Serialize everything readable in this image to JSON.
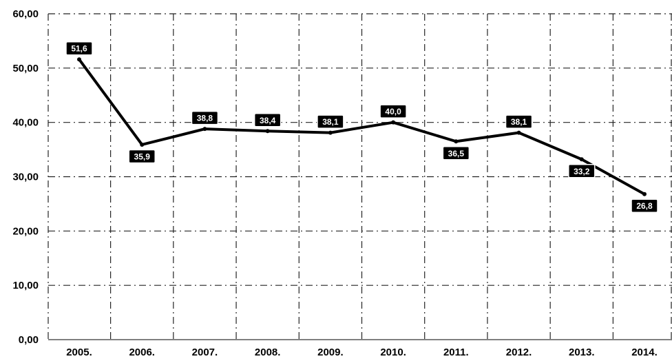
{
  "chart_data": {
    "type": "line",
    "categories": [
      "2005.",
      "2006.",
      "2007.",
      "2008.",
      "2009.",
      "2010.",
      "2011.",
      "2012.",
      "2013.",
      "2014."
    ],
    "series": [
      {
        "values": [
          51.6,
          35.9,
          38.8,
          38.4,
          38.1,
          40.0,
          36.5,
          38.1,
          33.2,
          26.8
        ]
      }
    ],
    "data_labels": [
      "51,6",
      "35,9",
      "38,8",
      "38,4",
      "38,1",
      "40,0",
      "36,5",
      "38,1",
      "33,2",
      "26,8"
    ],
    "y_tick_labels": [
      "0,00",
      "10,00",
      "20,00",
      "30,00",
      "40,00",
      "50,00",
      "60,00"
    ],
    "y_ticks": [
      0,
      10,
      20,
      30,
      40,
      50,
      60
    ],
    "ylim": [
      0,
      60
    ],
    "grid": true,
    "grid_style": "dash-dot",
    "line_color": "#000000",
    "label_background": "#000000",
    "label_text_color": "#ffffff"
  }
}
